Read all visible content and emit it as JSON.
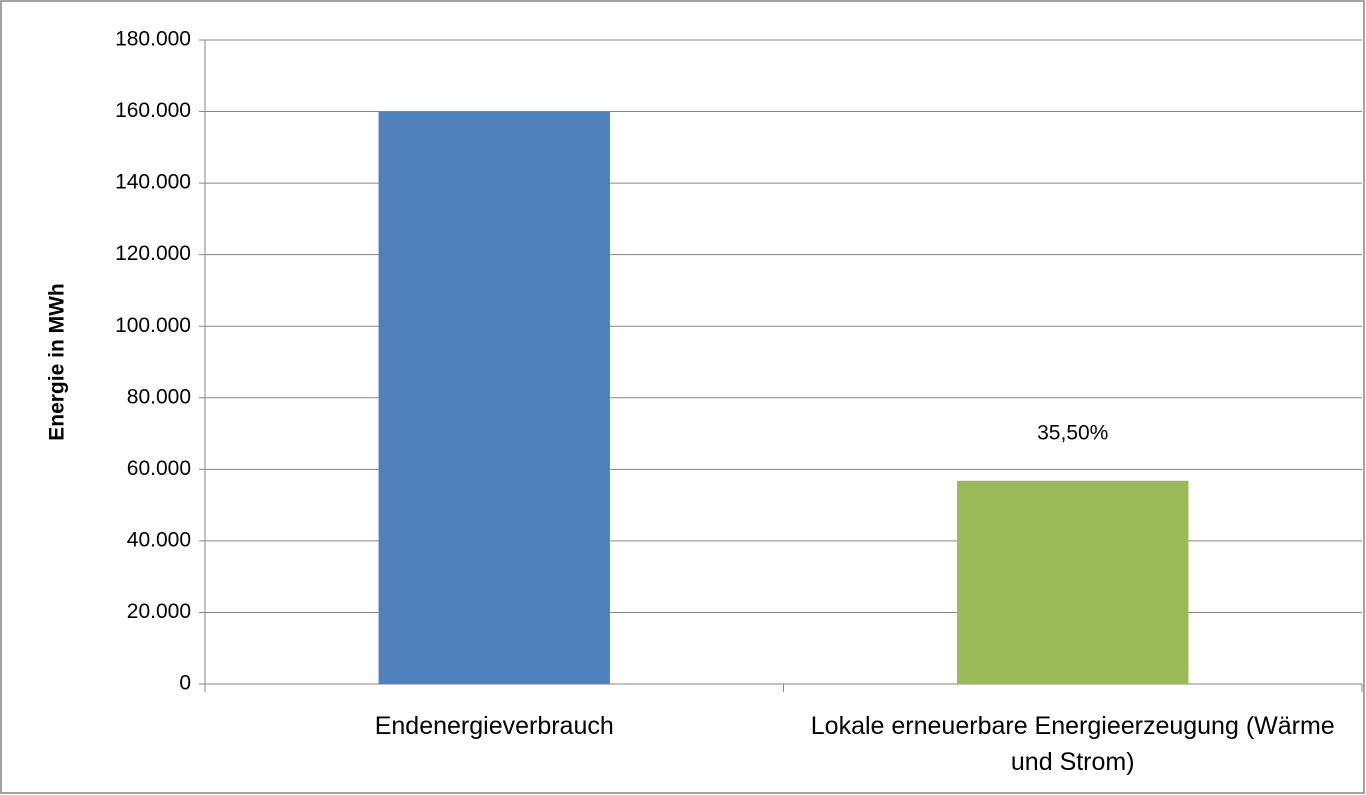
{
  "chart_data": {
    "type": "bar",
    "y_label": "Energie in MWh",
    "categories": [
      "Endenergieverbrauch",
      "Lokale erneuerbare Energieerzeugung (Wärme und Strom)"
    ],
    "values": [
      160000,
      56800
    ],
    "colors": [
      "#4f81bd",
      "#9bbb59"
    ],
    "annotations": [
      "35,50%"
    ],
    "ylim": [
      0,
      180000
    ],
    "yticks": [
      0,
      {
        "value": 20000,
        "label": "20.000"
      },
      {
        "value": 40000,
        "label": "40.000"
      },
      {
        "value": 60000,
        "label": "60.000"
      },
      {
        "value": 80000,
        "label": "80.000"
      },
      {
        "value": 100000,
        "label": "100.000"
      },
      {
        "value": 120000,
        "label": "120.000"
      },
      {
        "value": 140000,
        "label": "140.000"
      },
      {
        "value": 160000,
        "label": "160.000"
      },
      {
        "value": 180000,
        "label": "180.000"
      }
    ],
    "grid": true
  }
}
